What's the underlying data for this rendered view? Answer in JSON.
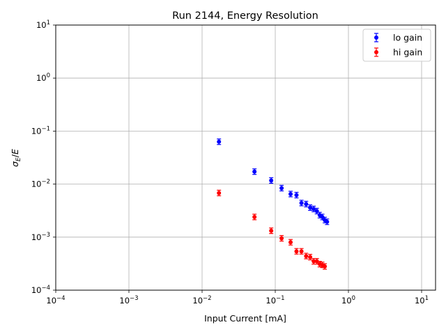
{
  "chart_data": {
    "type": "scatter",
    "title": "Run 2144, Energy Resolution",
    "xlabel": "Input Current [mA]",
    "ylabel": "σE/E",
    "x_scale": "log",
    "y_scale": "log",
    "xlim": [
      0.0001,
      15
    ],
    "ylim": [
      0.0001,
      10
    ],
    "grid": true,
    "legend_position": "top-right",
    "x_ticks": [
      {
        "value": 0.0001,
        "base": "10",
        "exp": "−4"
      },
      {
        "value": 0.001,
        "base": "10",
        "exp": "−3"
      },
      {
        "value": 0.01,
        "base": "10",
        "exp": "−2"
      },
      {
        "value": 0.1,
        "base": "10",
        "exp": "−1"
      },
      {
        "value": 1,
        "base": "10",
        "exp": "0"
      },
      {
        "value": 10,
        "base": "10",
        "exp": "1"
      }
    ],
    "y_ticks": [
      {
        "value": 0.0001,
        "base": "10",
        "exp": "−4"
      },
      {
        "value": 0.001,
        "base": "10",
        "exp": "−3"
      },
      {
        "value": 0.01,
        "base": "10",
        "exp": "−2"
      },
      {
        "value": 0.1,
        "base": "10",
        "exp": "−1"
      },
      {
        "value": 1,
        "base": "10",
        "exp": "0"
      },
      {
        "value": 10,
        "base": "10",
        "exp": "1"
      }
    ],
    "series": [
      {
        "name": "lo gain",
        "color": "#0000ff",
        "points": [
          {
            "x": 0.017,
            "y": 0.063
          },
          {
            "x": 0.052,
            "y": 0.0172
          },
          {
            "x": 0.088,
            "y": 0.0117
          },
          {
            "x": 0.122,
            "y": 0.0084
          },
          {
            "x": 0.162,
            "y": 0.0065
          },
          {
            "x": 0.195,
            "y": 0.0062
          },
          {
            "x": 0.228,
            "y": 0.0044
          },
          {
            "x": 0.264,
            "y": 0.0042
          },
          {
            "x": 0.3,
            "y": 0.0036
          },
          {
            "x": 0.335,
            "y": 0.0034
          },
          {
            "x": 0.37,
            "y": 0.0031
          },
          {
            "x": 0.405,
            "y": 0.0026
          },
          {
            "x": 0.44,
            "y": 0.0024
          },
          {
            "x": 0.475,
            "y": 0.0021
          },
          {
            "x": 0.51,
            "y": 0.00195
          }
        ]
      },
      {
        "name": "hi gain",
        "color": "#ff0000",
        "points": [
          {
            "x": 0.017,
            "y": 0.0068
          },
          {
            "x": 0.052,
            "y": 0.0024
          },
          {
            "x": 0.088,
            "y": 0.00132
          },
          {
            "x": 0.122,
            "y": 0.00095
          },
          {
            "x": 0.162,
            "y": 0.0008
          },
          {
            "x": 0.195,
            "y": 0.00054
          },
          {
            "x": 0.228,
            "y": 0.00054
          },
          {
            "x": 0.264,
            "y": 0.00044
          },
          {
            "x": 0.3,
            "y": 0.00042
          },
          {
            "x": 0.335,
            "y": 0.00035
          },
          {
            "x": 0.37,
            "y": 0.00035
          },
          {
            "x": 0.405,
            "y": 0.00031
          },
          {
            "x": 0.44,
            "y": 0.0003
          },
          {
            "x": 0.475,
            "y": 0.00028
          }
        ]
      }
    ]
  }
}
